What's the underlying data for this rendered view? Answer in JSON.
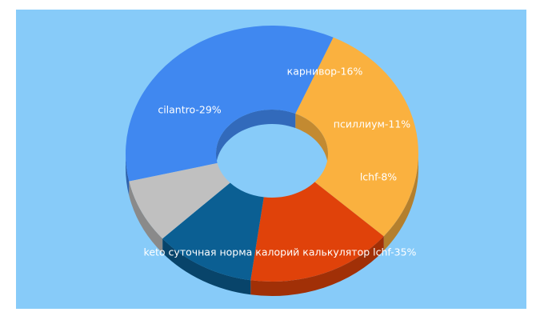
{
  "chart_data": {
    "type": "pie",
    "variant": "3d-donut",
    "background": "#87cbf9",
    "slices": [
      {
        "label": "keto суточная норма калорий калькулятор lchf",
        "value": 35,
        "text": "keto суточная норма калорий калькулятор lchf-35%",
        "color": "#4088f0"
      },
      {
        "label": "cilantro",
        "value": 29,
        "text": "cilantro-29%",
        "color": "#fab13f"
      },
      {
        "label": "карнивор",
        "value": 16,
        "text": "карнивор-16%",
        "color": "#e0420a"
      },
      {
        "label": "псиллиум",
        "value": 11,
        "text": "псиллиум-11%",
        "color": "#0b5f93"
      },
      {
        "label": "lchf",
        "value": 8,
        "text": "lchf-8%",
        "color": "#c0c0c0"
      }
    ]
  }
}
